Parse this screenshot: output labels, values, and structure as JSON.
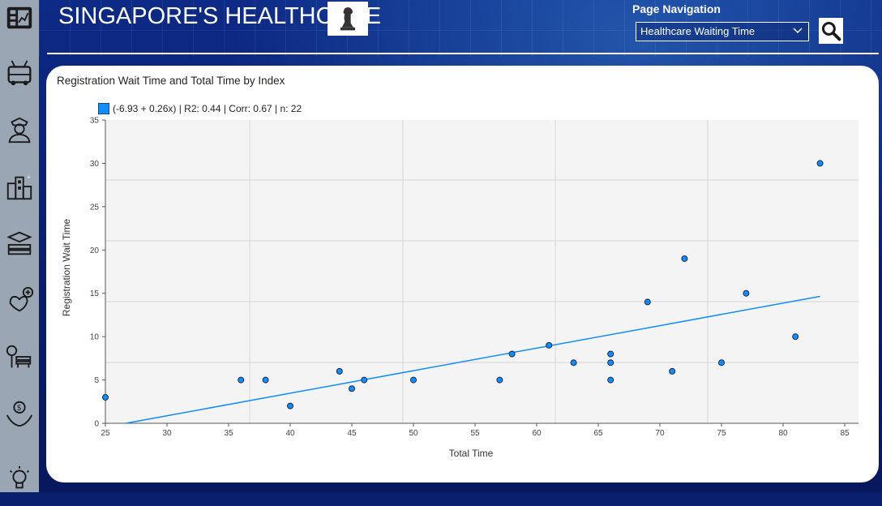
{
  "header": {
    "title": "SINGAPORE'S HEALTHCARE",
    "nav_label": "Page Navigation",
    "nav_selected": "Healthcare Waiting Time"
  },
  "colors": {
    "accent": "#118dff",
    "sidebar": "#9aa6b4",
    "background": "#0a1f6e"
  },
  "sidebar": {
    "items": [
      {
        "icon": "dashboard-icon"
      },
      {
        "icon": "bus-icon"
      },
      {
        "icon": "police-officer-icon"
      },
      {
        "icon": "buildings-icon"
      },
      {
        "icon": "education-icon"
      },
      {
        "icon": "healthcare-icon"
      },
      {
        "icon": "park-bench-icon"
      },
      {
        "icon": "money-hand-icon"
      },
      {
        "icon": "lightbulb-icon"
      }
    ]
  },
  "chart_data": {
    "type": "scatter",
    "title": "Registration Wait Time and Total Time by Index",
    "legend": "(-6.93 + 0.26x) | R2: 0.44 | Corr: 0.67 | n: 22",
    "xlabel": "Total Time",
    "ylabel": "Registration Wait Time",
    "xlim": [
      25,
      85
    ],
    "ylim": [
      0,
      35
    ],
    "xticks": [
      25,
      30,
      35,
      40,
      45,
      50,
      55,
      60,
      65,
      70,
      75,
      80,
      85
    ],
    "yticks": [
      0,
      5,
      10,
      15,
      20,
      25,
      30,
      35
    ],
    "grid": true,
    "trendline": {
      "intercept": -6.93,
      "slope": 0.26,
      "x_range": [
        25,
        83
      ]
    },
    "points": [
      {
        "x": 25,
        "y": 3
      },
      {
        "x": 36,
        "y": 5
      },
      {
        "x": 38,
        "y": 5
      },
      {
        "x": 40,
        "y": 2
      },
      {
        "x": 44,
        "y": 6
      },
      {
        "x": 45,
        "y": 4
      },
      {
        "x": 46,
        "y": 5
      },
      {
        "x": 50,
        "y": 5
      },
      {
        "x": 57,
        "y": 5
      },
      {
        "x": 58,
        "y": 8
      },
      {
        "x": 61,
        "y": 9
      },
      {
        "x": 63,
        "y": 7
      },
      {
        "x": 66,
        "y": 8
      },
      {
        "x": 66,
        "y": 7
      },
      {
        "x": 66,
        "y": 5
      },
      {
        "x": 69,
        "y": 14
      },
      {
        "x": 71,
        "y": 6
      },
      {
        "x": 72,
        "y": 19
      },
      {
        "x": 75,
        "y": 7
      },
      {
        "x": 77,
        "y": 15
      },
      {
        "x": 81,
        "y": 10
      },
      {
        "x": 83,
        "y": 30
      }
    ]
  }
}
